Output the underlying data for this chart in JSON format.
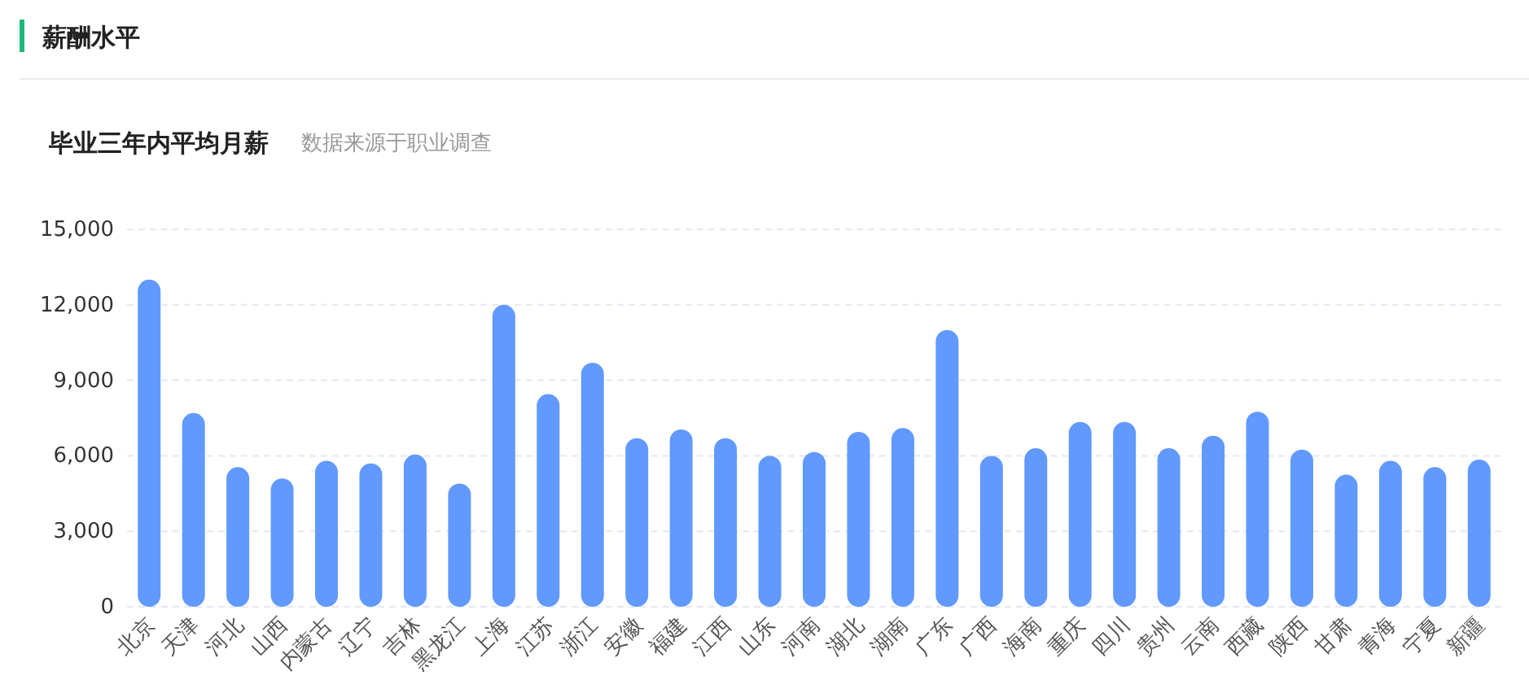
{
  "chart_data": {
    "type": "bar",
    "title": "薪酬水平",
    "subtitle": "毕业三年内平均月薪",
    "annotations": [
      "数据来源于职业调查"
    ],
    "categories": [
      "北京",
      "天津",
      "河北",
      "山西",
      "内蒙古",
      "辽宁",
      "吉林",
      "黑龙江",
      "上海",
      "江苏",
      "浙江",
      "安徽",
      "福建",
      "江西",
      "山东",
      "河南",
      "湖北",
      "湖南",
      "广东",
      "广西",
      "海南",
      "重庆",
      "四川",
      "贵州",
      "云南",
      "西藏",
      "陕西",
      "甘肃",
      "青海",
      "宁夏",
      "新疆"
    ],
    "values": [
      13000,
      7700,
      5550,
      5100,
      5800,
      5700,
      6050,
      4900,
      12000,
      8450,
      9700,
      6700,
      7050,
      6700,
      6000,
      6150,
      6950,
      7100,
      11000,
      6000,
      6300,
      7350,
      7350,
      6300,
      6800,
      7750,
      6250,
      5250,
      5800,
      5550,
      5850
    ],
    "color": "#6199fe",
    "ylim": [
      0,
      15000
    ],
    "yticks": [
      {
        "value": 0,
        "label": "0"
      },
      {
        "value": 3000,
        "label": "3,000"
      },
      {
        "value": 6000,
        "label": "6,000"
      },
      {
        "value": 9000,
        "label": "9,000"
      },
      {
        "value": 12000,
        "label": "12,000"
      },
      {
        "value": 15000,
        "label": "15,000"
      }
    ],
    "grid": "y"
  }
}
